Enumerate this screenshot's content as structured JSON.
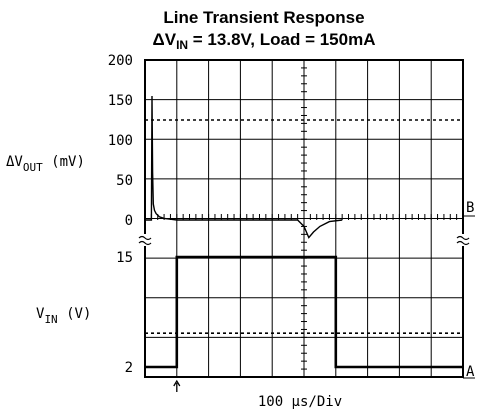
{
  "chart_data": {
    "type": "line",
    "title": "Line Transient Response",
    "subtitle": {
      "prefix": "ΔV",
      "sub": "IN",
      "rest": " = 13.8V, Load = 150mA"
    },
    "upper_panel": {
      "ylabel": {
        "main": "ΔV",
        "sub": "OUT",
        "rest": " (mV)"
      },
      "yticks": [
        "200",
        "150",
        "100",
        "50",
        "0"
      ],
      "ylim": [
        0,
        200
      ],
      "reference_level": 125,
      "marker": "B",
      "series": {
        "x": [
          0,
          0.2,
          0.22,
          0.24,
          0.26,
          0.3,
          0.35,
          0.45,
          0.6,
          0.8,
          1.0,
          1.5,
          4.8,
          5.0,
          5.15,
          5.3,
          5.5,
          5.8,
          6.2
        ],
        "y": [
          0,
          0,
          155,
          60,
          20,
          12,
          8,
          4,
          2,
          1,
          0,
          0,
          0,
          -8,
          -22,
          -15,
          -8,
          -2,
          0
        ]
      }
    },
    "lower_panel": {
      "ylabel": {
        "main": "V",
        "sub": "IN",
        "rest": " (V)"
      },
      "yticks": [
        "15",
        "2"
      ],
      "ylim": [
        2,
        15
      ],
      "reference_level": 6,
      "marker": "A",
      "series": {
        "x": [
          0,
          1.0,
          1.0,
          6.0,
          6.0,
          10
        ],
        "y": [
          2,
          2,
          15,
          15,
          2,
          2
        ]
      }
    },
    "xlabel": "100 μs/Div",
    "x_divisions": 10,
    "grid": true
  }
}
